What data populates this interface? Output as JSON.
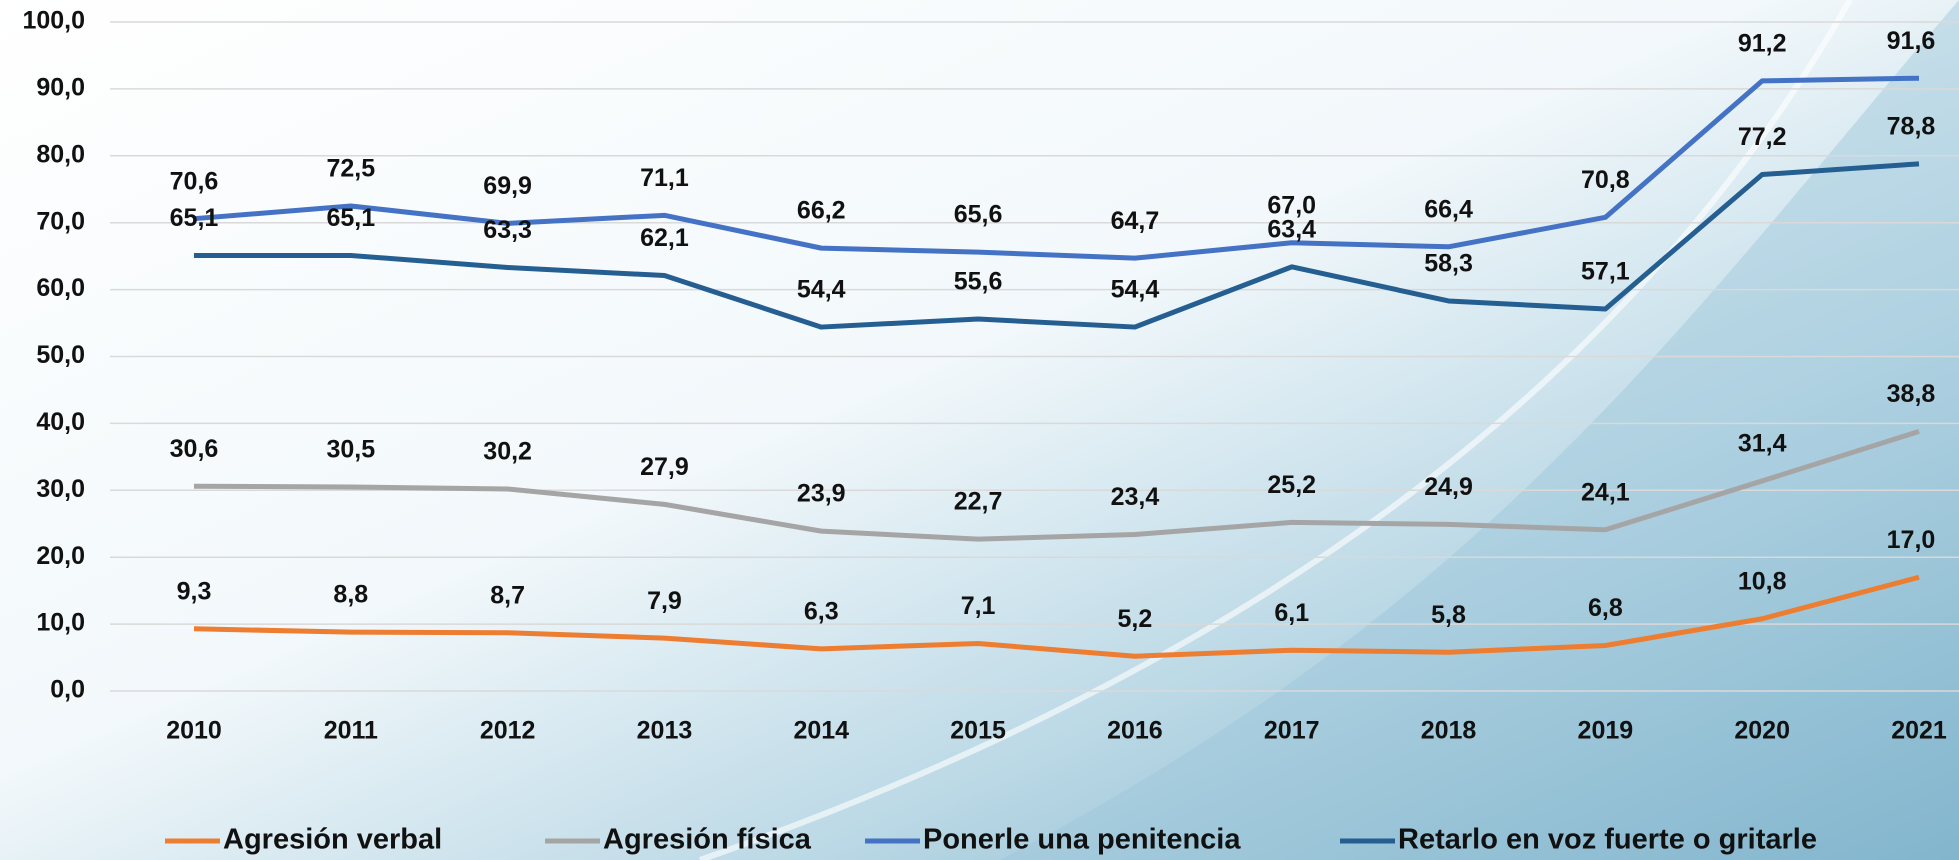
{
  "chart_data": {
    "type": "line",
    "categories": [
      "2010",
      "2011",
      "2012",
      "2013",
      "2014",
      "2015",
      "2016",
      "2017",
      "2018",
      "2019",
      "2020",
      "2021"
    ],
    "series": [
      {
        "name": "Agresión verbal",
        "color": "#ed7d31",
        "values": [
          9.3,
          8.8,
          8.7,
          7.9,
          6.3,
          7.1,
          5.2,
          6.1,
          5.8,
          6.8,
          10.8,
          17.0
        ],
        "value_labels": [
          "9,3",
          "8,8",
          "8,7",
          "7,9",
          "6,3",
          "7,1",
          "5,2",
          "6,1",
          "5,8",
          "6,8",
          "10,8",
          "17,0"
        ]
      },
      {
        "name": "Agresión física",
        "color": "#a5a5a5",
        "values": [
          30.6,
          30.5,
          30.2,
          27.9,
          23.9,
          22.7,
          23.4,
          25.2,
          24.9,
          24.1,
          31.4,
          38.8
        ],
        "value_labels": [
          "30,6",
          "30,5",
          "30,2",
          "27,9",
          "23,9",
          "22,7",
          "23,4",
          "25,2",
          "24,9",
          "24,1",
          "31,4",
          "38,8"
        ]
      },
      {
        "name": "Ponerle una penitencia",
        "color": "#4472c4",
        "values": [
          70.6,
          72.5,
          69.9,
          71.1,
          66.2,
          65.6,
          64.7,
          67.0,
          66.4,
          70.8,
          91.2,
          91.6
        ],
        "value_labels": [
          "70,6",
          "72,5",
          "69,9",
          "71,1",
          "66,2",
          "65,6",
          "64,7",
          "67,0",
          "66,4",
          "70,8",
          "91,2",
          "91,6"
        ]
      },
      {
        "name": "Retarlo en voz fuerte o gritarle",
        "color": "#255e91",
        "values": [
          65.1,
          65.1,
          63.3,
          62.1,
          54.4,
          55.6,
          54.4,
          63.4,
          58.3,
          57.1,
          77.2,
          78.8
        ],
        "value_labels": [
          "65,1",
          "65,1",
          "63,3",
          "62,1",
          "54,4",
          "55,6",
          "54,4",
          "63,4",
          "58,3",
          "57,1",
          "77,2",
          "78,8"
        ]
      }
    ],
    "ylim": [
      0,
      100
    ],
    "yticks": [
      {
        "value": 0,
        "label": "0,0"
      },
      {
        "value": 10,
        "label": "10,0"
      },
      {
        "value": 20,
        "label": "20,0"
      },
      {
        "value": 30,
        "label": "30,0"
      },
      {
        "value": 40,
        "label": "40,0"
      },
      {
        "value": 50,
        "label": "50,0"
      },
      {
        "value": 60,
        "label": "60,0"
      },
      {
        "value": 70,
        "label": "70,0"
      },
      {
        "value": 80,
        "label": "80,0"
      },
      {
        "value": 90,
        "label": "90,0"
      },
      {
        "value": 100,
        "label": "100,0"
      }
    ],
    "grid": true,
    "legend": "bottom"
  }
}
